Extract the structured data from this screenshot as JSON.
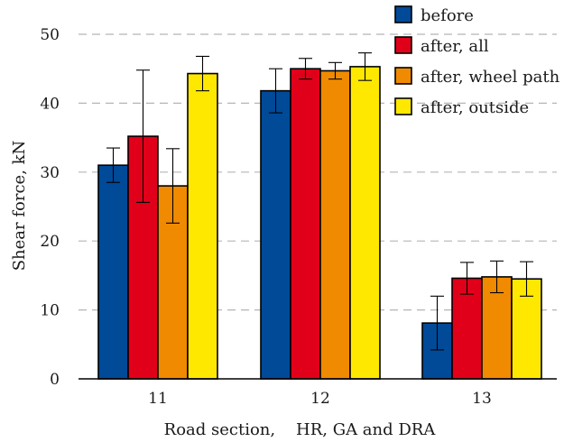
{
  "chart_data": {
    "type": "bar",
    "xlabel": "Road section,    HR, GA and DRA",
    "ylabel": "Shear force, kN",
    "ylim": [
      0,
      50
    ],
    "yticks": [
      0,
      10,
      20,
      30,
      40,
      50
    ],
    "grid": true,
    "legend_position": "top-right",
    "categories": [
      "11",
      "12",
      "13"
    ],
    "series": [
      {
        "name": "before",
        "color": "#004a98",
        "values": [
          31,
          41.8,
          8.1
        ],
        "errors": [
          2.5,
          3.2,
          3.9
        ]
      },
      {
        "name": "after, all",
        "color": "#e1001a",
        "values": [
          35.2,
          45,
          14.6
        ],
        "errors": [
          9.6,
          1.5,
          2.3
        ]
      },
      {
        "name": "after, wheel path",
        "color": "#f08a00",
        "values": [
          28,
          44.7,
          14.8
        ],
        "errors": [
          5.4,
          1.2,
          2.3
        ]
      },
      {
        "name": "after, outside",
        "color": "#ffe800",
        "values": [
          44.3,
          45.3,
          14.5
        ],
        "errors": [
          2.5,
          2.0,
          2.5
        ]
      }
    ]
  }
}
